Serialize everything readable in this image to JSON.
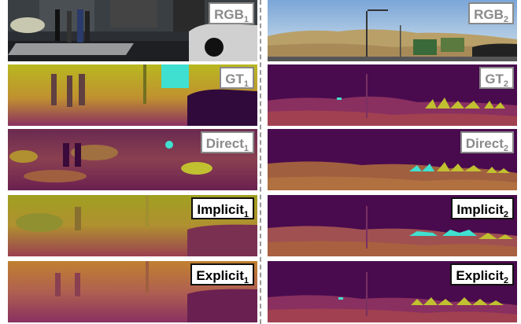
{
  "columns": [
    {
      "rows": [
        {
          "id": "rgb1",
          "label": "RGB",
          "sub": "1"
        },
        {
          "id": "gt1",
          "label": "GT",
          "sub": "1"
        },
        {
          "id": "direct1",
          "label": "Direct",
          "sub": "1"
        },
        {
          "id": "implicit1",
          "label": "Implicit",
          "sub": "1"
        },
        {
          "id": "explicit1",
          "label": "Explicit",
          "sub": "1"
        }
      ]
    },
    {
      "rows": [
        {
          "id": "rgb2",
          "label": "RGB",
          "sub": "2"
        },
        {
          "id": "gt2",
          "label": "GT",
          "sub": "2"
        },
        {
          "id": "direct2",
          "label": "Direct",
          "sub": "2"
        },
        {
          "id": "implicit2",
          "label": "Implicit",
          "sub": "2"
        },
        {
          "id": "explicit2",
          "label": "Explicit",
          "sub": "2"
        }
      ]
    }
  ],
  "colors": {
    "depth_far": "#4a0a4e",
    "depth_mid": "#b05a5a",
    "depth_near": "#b8c020",
    "highlight": "#40e0d0"
  }
}
